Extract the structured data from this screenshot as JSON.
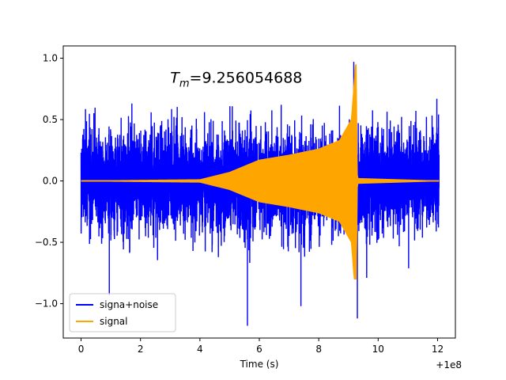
{
  "chart_data": {
    "type": "line",
    "title": "",
    "annotation": "T_m=9.256054688",
    "annotation_parts": {
      "symbol": "T",
      "subscript": "m",
      "rest": "=9.256054688"
    },
    "xlabel": "Time (s)",
    "ylabel": "",
    "x_offset_label": "+1e8",
    "xlim": [
      -0.6,
      12.6
    ],
    "ylim": [
      -1.28,
      1.1
    ],
    "x_ticks": [
      0,
      2,
      4,
      6,
      8,
      10,
      12
    ],
    "x_tick_labels": [
      "0",
      "2",
      "4",
      "6",
      "8",
      "10",
      "12"
    ],
    "y_ticks": [
      -1.0,
      -0.5,
      0.0,
      0.5,
      1.0
    ],
    "y_tick_labels": [
      "−1.0",
      "−0.5",
      "0.0",
      "0.5",
      "1.0"
    ],
    "grid": false,
    "legend_position": "lower-left",
    "series": [
      {
        "name": "signa+noise",
        "color": "#0000ff",
        "x_range": [
          0,
          12.05
        ],
        "typical_amplitude": 0.65,
        "peak_max": 0.97,
        "peak_min": -1.18
      },
      {
        "name": "signal",
        "color": "#ffa500",
        "description_points": [
          {
            "x": 0,
            "amp": 0.0
          },
          {
            "x": 4.0,
            "amp": 0.01
          },
          {
            "x": 5.0,
            "amp": 0.07
          },
          {
            "x": 6.0,
            "amp": 0.17
          },
          {
            "x": 7.0,
            "amp": 0.21
          },
          {
            "x": 8.0,
            "amp": 0.26
          },
          {
            "x": 8.7,
            "amp": 0.33
          },
          {
            "x": 9.1,
            "amp": 0.5
          },
          {
            "x": 9.256,
            "amp": 1.0
          },
          {
            "x": 9.3,
            "amp": 0.02
          },
          {
            "x": 12.05,
            "amp": 0.0
          }
        ],
        "peak_min": -0.8
      }
    ]
  }
}
